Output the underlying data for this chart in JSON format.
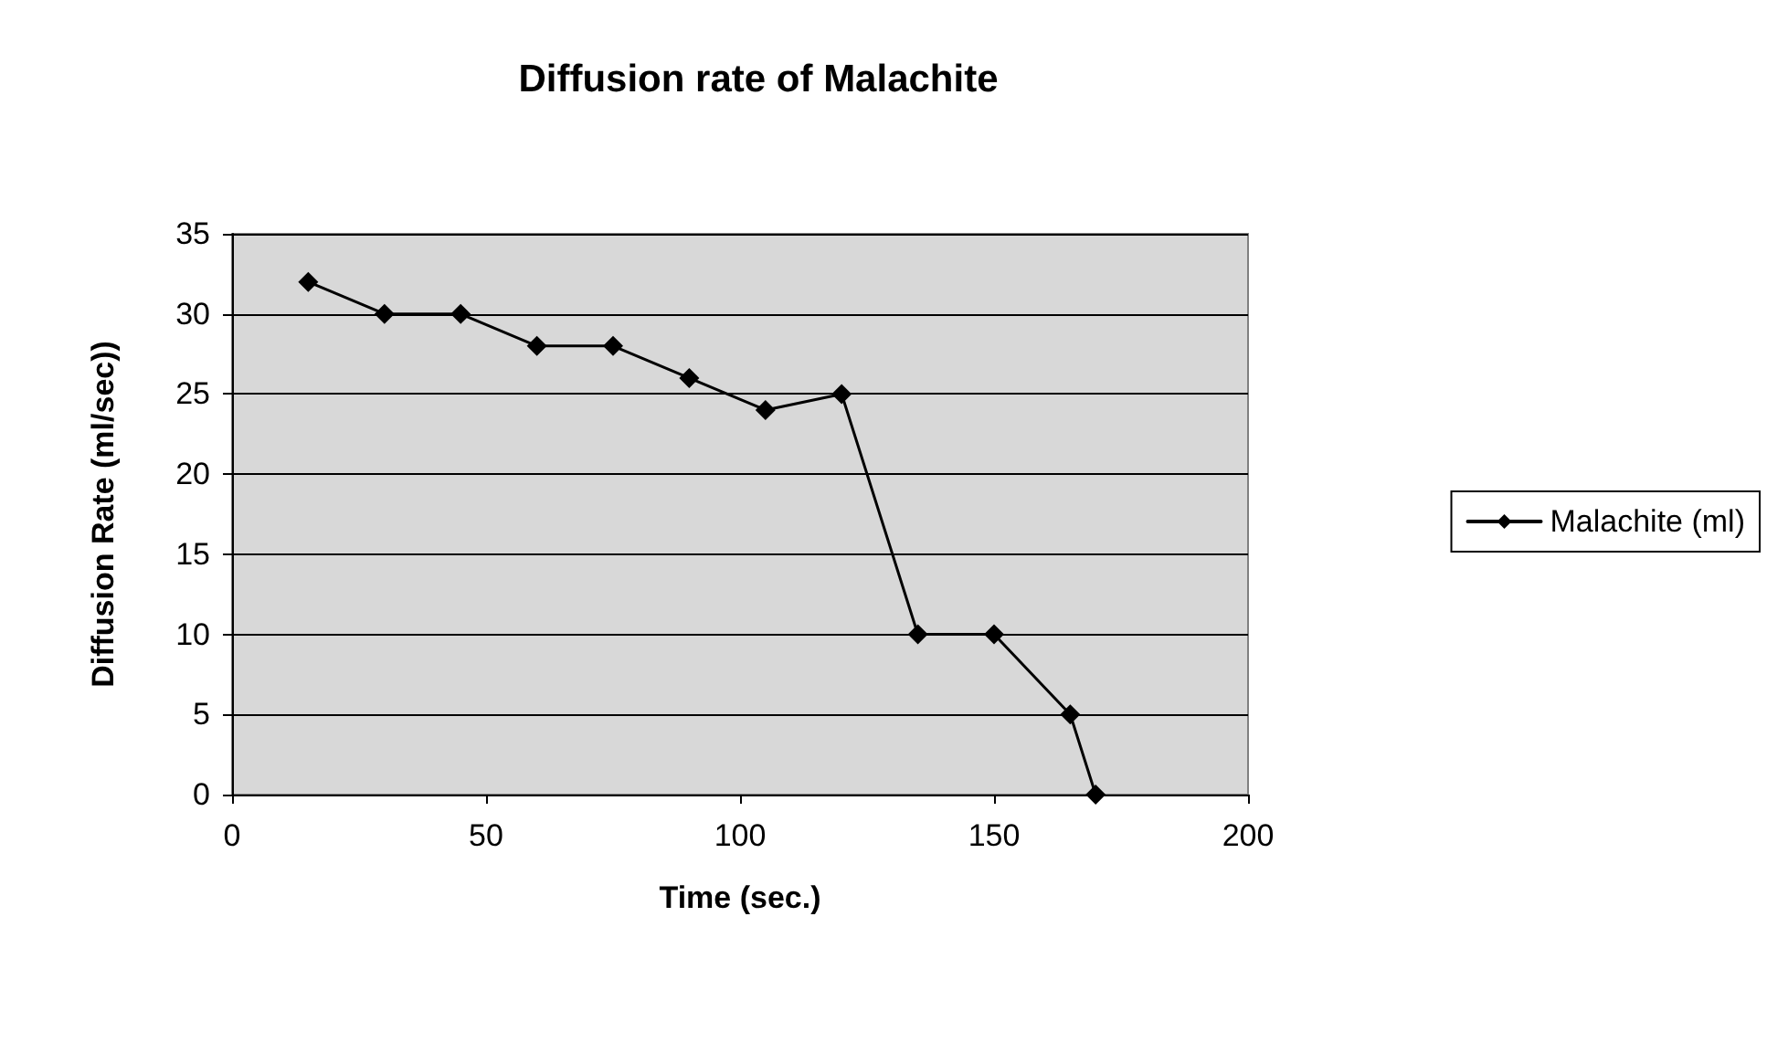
{
  "chart_data": {
    "type": "line",
    "title": "Diffusion rate of Malachite",
    "xlabel": "Time (sec.)",
    "ylabel": "Diffusion Rate (ml/sec))",
    "x": [
      15,
      30,
      45,
      60,
      75,
      90,
      105,
      120,
      135,
      150,
      165,
      170
    ],
    "series": [
      {
        "name": "Malachite (ml)",
        "color": "#000000",
        "values": [
          32,
          30,
          30,
          28,
          28,
          26,
          24,
          25,
          10,
          10,
          5,
          0
        ]
      }
    ],
    "xlim": [
      0,
      200
    ],
    "xticks": [
      0,
      50,
      100,
      150,
      200
    ],
    "ylim": [
      0,
      35
    ],
    "yticks": [
      0,
      5,
      10,
      15,
      20,
      25,
      30,
      35
    ],
    "grid": "y",
    "legend": "right",
    "marker": "diamond",
    "line_style": "solid"
  }
}
